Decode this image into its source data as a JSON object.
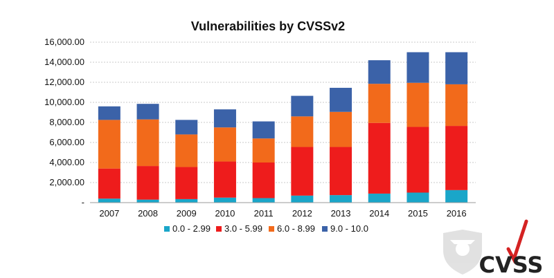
{
  "chart_data": {
    "type": "bar",
    "stacked": true,
    "title": "Vulnerabilities by CVSSv2",
    "xlabel": "",
    "ylabel": "",
    "categories": [
      "2007",
      "2008",
      "2009",
      "2010",
      "2011",
      "2012",
      "2013",
      "2014",
      "2015",
      "2016"
    ],
    "ylim": [
      0,
      16000
    ],
    "yticks": [
      {
        "value": 0,
        "label": "-"
      },
      {
        "value": 2000,
        "label": "2,000.00"
      },
      {
        "value": 4000,
        "label": "4,000.00"
      },
      {
        "value": 6000,
        "label": "6,000.00"
      },
      {
        "value": 8000,
        "label": "8,000.00"
      },
      {
        "value": 10000,
        "label": "10,000.00"
      },
      {
        "value": 12000,
        "label": "12,000.00"
      },
      {
        "value": 14000,
        "label": "14,000.00"
      },
      {
        "value": 16000,
        "label": "16,000.00"
      }
    ],
    "series": [
      {
        "name": "0.0 - 2.99",
        "color": "#1aa6c9",
        "values": [
          400,
          300,
          350,
          500,
          450,
          700,
          750,
          900,
          1000,
          1250
        ]
      },
      {
        "name": "3.0 - 5.99",
        "color": "#ee1c1c",
        "values": [
          3000,
          3350,
          3200,
          3600,
          3550,
          4850,
          4800,
          7050,
          6550,
          6400
        ]
      },
      {
        "name": "6.0 - 8.99",
        "color": "#f26a1b",
        "values": [
          4850,
          4650,
          3250,
          3400,
          2400,
          3050,
          3500,
          3900,
          4400,
          4150
        ]
      },
      {
        "name": "9.0 - 10.0",
        "color": "#3b62a8",
        "values": [
          1350,
          1550,
          1450,
          1800,
          1700,
          2050,
          2400,
          2350,
          3050,
          3200
        ]
      }
    ],
    "grid": "horizontal dashed",
    "legend_position": "bottom"
  },
  "watermark": {
    "logo_text": "CVSS",
    "logo_icon": "shield-mascot-icon"
  }
}
